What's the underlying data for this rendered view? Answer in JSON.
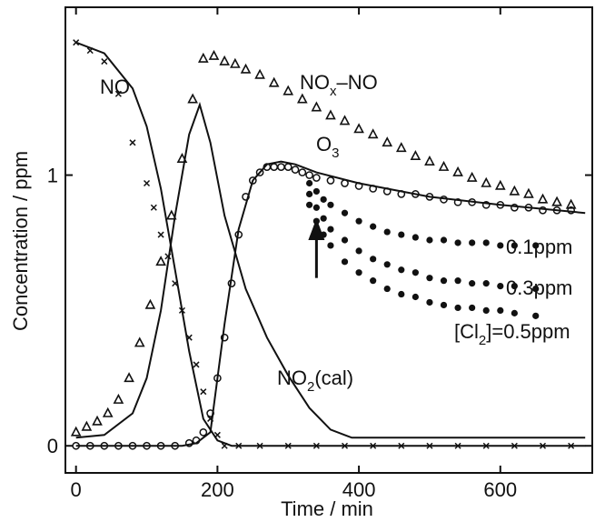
{
  "chart_data": {
    "type": "scatter",
    "xlabel": "Time / min",
    "ylabel": "Concentration / ppm",
    "xlim": [
      -15,
      730
    ],
    "ylim": [
      -0.1,
      1.62
    ],
    "x_ticks": [
      0,
      200,
      400,
      600
    ],
    "y_ticks": [
      0,
      1
    ],
    "legend": "none",
    "series": [
      {
        "name": "NO",
        "marker": "x",
        "points": [
          [
            0,
            1.49
          ],
          [
            20,
            1.46
          ],
          [
            40,
            1.42
          ],
          [
            60,
            1.3
          ],
          [
            80,
            1.12
          ],
          [
            100,
            0.97
          ],
          [
            110,
            0.88
          ],
          [
            120,
            0.78
          ],
          [
            130,
            0.7
          ],
          [
            140,
            0.6
          ],
          [
            150,
            0.5
          ],
          [
            160,
            0.4
          ],
          [
            170,
            0.3
          ],
          [
            180,
            0.2
          ],
          [
            190,
            0.1
          ],
          [
            200,
            0.04
          ],
          [
            210,
            0.0
          ],
          [
            230,
            0.0
          ],
          [
            260,
            0.0
          ],
          [
            300,
            0.0
          ],
          [
            340,
            0.0
          ],
          [
            380,
            0.0
          ],
          [
            420,
            0.0
          ],
          [
            460,
            0.0
          ],
          [
            500,
            0.0
          ],
          [
            540,
            0.0
          ],
          [
            580,
            0.0
          ],
          [
            620,
            0.0
          ],
          [
            660,
            0.0
          ],
          [
            700,
            0.0
          ]
        ]
      },
      {
        "name": "NOx-NO",
        "marker": "triangle",
        "points": [
          [
            0,
            0.05
          ],
          [
            15,
            0.07
          ],
          [
            30,
            0.09
          ],
          [
            45,
            0.12
          ],
          [
            60,
            0.17
          ],
          [
            75,
            0.25
          ],
          [
            90,
            0.38
          ],
          [
            105,
            0.52
          ],
          [
            120,
            0.68
          ],
          [
            135,
            0.85
          ],
          [
            150,
            1.06
          ],
          [
            165,
            1.28
          ],
          [
            180,
            1.43
          ],
          [
            195,
            1.44
          ],
          [
            210,
            1.42
          ],
          [
            225,
            1.41
          ],
          [
            240,
            1.39
          ],
          [
            260,
            1.37
          ],
          [
            280,
            1.34
          ],
          [
            300,
            1.31
          ],
          [
            320,
            1.28
          ],
          [
            340,
            1.25
          ],
          [
            360,
            1.22
          ],
          [
            380,
            1.2
          ],
          [
            400,
            1.17
          ],
          [
            420,
            1.15
          ],
          [
            440,
            1.12
          ],
          [
            460,
            1.1
          ],
          [
            480,
            1.07
          ],
          [
            500,
            1.05
          ],
          [
            520,
            1.03
          ],
          [
            540,
            1.01
          ],
          [
            560,
            0.99
          ],
          [
            580,
            0.97
          ],
          [
            600,
            0.96
          ],
          [
            620,
            0.94
          ],
          [
            640,
            0.93
          ],
          [
            660,
            0.91
          ],
          [
            680,
            0.9
          ],
          [
            700,
            0.89
          ]
        ]
      },
      {
        "name": "O3",
        "marker": "circle-open",
        "points": [
          [
            0,
            0.0
          ],
          [
            20,
            0.0
          ],
          [
            40,
            0.0
          ],
          [
            60,
            0.0
          ],
          [
            80,
            0.0
          ],
          [
            100,
            0.0
          ],
          [
            120,
            0.0
          ],
          [
            140,
            0.0
          ],
          [
            160,
            0.01
          ],
          [
            170,
            0.02
          ],
          [
            180,
            0.05
          ],
          [
            190,
            0.12
          ],
          [
            200,
            0.25
          ],
          [
            210,
            0.4
          ],
          [
            220,
            0.6
          ],
          [
            230,
            0.78
          ],
          [
            240,
            0.92
          ],
          [
            250,
            0.98
          ],
          [
            260,
            1.01
          ],
          [
            270,
            1.03
          ],
          [
            280,
            1.03
          ],
          [
            290,
            1.03
          ],
          [
            300,
            1.03
          ],
          [
            310,
            1.02
          ],
          [
            320,
            1.01
          ],
          [
            330,
            1.0
          ],
          [
            340,
            0.99
          ],
          [
            360,
            0.98
          ],
          [
            380,
            0.97
          ],
          [
            400,
            0.96
          ],
          [
            420,
            0.95
          ],
          [
            440,
            0.94
          ],
          [
            460,
            0.93
          ],
          [
            480,
            0.93
          ],
          [
            500,
            0.92
          ],
          [
            520,
            0.91
          ],
          [
            540,
            0.9
          ],
          [
            560,
            0.9
          ],
          [
            580,
            0.89
          ],
          [
            600,
            0.89
          ],
          [
            620,
            0.88
          ],
          [
            640,
            0.88
          ],
          [
            660,
            0.87
          ],
          [
            680,
            0.87
          ],
          [
            700,
            0.87
          ]
        ]
      },
      {
        "name": "0.1ppm",
        "marker": "dot",
        "points": [
          [
            330,
            0.97
          ],
          [
            340,
            0.94
          ],
          [
            350,
            0.91
          ],
          [
            360,
            0.89
          ],
          [
            380,
            0.86
          ],
          [
            400,
            0.83
          ],
          [
            420,
            0.81
          ],
          [
            440,
            0.79
          ],
          [
            460,
            0.78
          ],
          [
            480,
            0.77
          ],
          [
            500,
            0.76
          ],
          [
            520,
            0.76
          ],
          [
            540,
            0.75
          ],
          [
            560,
            0.75
          ],
          [
            580,
            0.75
          ],
          [
            600,
            0.74
          ],
          [
            620,
            0.74
          ],
          [
            650,
            0.74
          ]
        ]
      },
      {
        "name": "0.3ppm",
        "marker": "dot",
        "points": [
          [
            330,
            0.93
          ],
          [
            340,
            0.88
          ],
          [
            350,
            0.84
          ],
          [
            360,
            0.8
          ],
          [
            380,
            0.76
          ],
          [
            400,
            0.72
          ],
          [
            420,
            0.69
          ],
          [
            440,
            0.67
          ],
          [
            460,
            0.65
          ],
          [
            480,
            0.64
          ],
          [
            500,
            0.62
          ],
          [
            520,
            0.61
          ],
          [
            540,
            0.61
          ],
          [
            560,
            0.6
          ],
          [
            580,
            0.6
          ],
          [
            600,
            0.59
          ],
          [
            620,
            0.59
          ],
          [
            650,
            0.58
          ]
        ]
      },
      {
        "name": "[Cl2]=0.5ppm",
        "marker": "dot",
        "points": [
          [
            330,
            0.89
          ],
          [
            340,
            0.83
          ],
          [
            350,
            0.78
          ],
          [
            360,
            0.74
          ],
          [
            380,
            0.68
          ],
          [
            400,
            0.64
          ],
          [
            420,
            0.61
          ],
          [
            440,
            0.58
          ],
          [
            460,
            0.56
          ],
          [
            480,
            0.55
          ],
          [
            500,
            0.53
          ],
          [
            520,
            0.52
          ],
          [
            540,
            0.51
          ],
          [
            560,
            0.51
          ],
          [
            580,
            0.5
          ],
          [
            600,
            0.5
          ],
          [
            620,
            0.49
          ],
          [
            650,
            0.48
          ]
        ]
      },
      {
        "name": "NO (model)",
        "marker": "line",
        "points": [
          [
            0,
            1.49
          ],
          [
            40,
            1.45
          ],
          [
            80,
            1.32
          ],
          [
            100,
            1.18
          ],
          [
            120,
            0.95
          ],
          [
            140,
            0.65
          ],
          [
            160,
            0.35
          ],
          [
            180,
            0.1
          ],
          [
            200,
            0.02
          ],
          [
            220,
            0.0
          ],
          [
            400,
            0.0
          ],
          [
            720,
            0.0
          ]
        ]
      },
      {
        "name": "NO2(cal)",
        "marker": "line",
        "points": [
          [
            0,
            0.03
          ],
          [
            40,
            0.04
          ],
          [
            80,
            0.12
          ],
          [
            100,
            0.25
          ],
          [
            120,
            0.5
          ],
          [
            140,
            0.85
          ],
          [
            160,
            1.15
          ],
          [
            175,
            1.26
          ],
          [
            190,
            1.12
          ],
          [
            210,
            0.85
          ],
          [
            240,
            0.58
          ],
          [
            270,
            0.4
          ],
          [
            300,
            0.26
          ],
          [
            330,
            0.14
          ],
          [
            360,
            0.06
          ],
          [
            390,
            0.03
          ],
          [
            420,
            0.03
          ],
          [
            720,
            0.03
          ]
        ]
      },
      {
        "name": "O3 (model)",
        "marker": "line",
        "points": [
          [
            0,
            0.0
          ],
          [
            150,
            0.0
          ],
          [
            170,
            0.01
          ],
          [
            190,
            0.05
          ],
          [
            210,
            0.45
          ],
          [
            230,
            0.8
          ],
          [
            250,
            0.98
          ],
          [
            270,
            1.04
          ],
          [
            290,
            1.05
          ],
          [
            310,
            1.04
          ],
          [
            340,
            1.01
          ],
          [
            400,
            0.97
          ],
          [
            500,
            0.92
          ],
          [
            600,
            0.89
          ],
          [
            720,
            0.86
          ]
        ]
      }
    ],
    "annotations": [
      {
        "text_main": "NO",
        "text_sub": "",
        "text_tail": ""
      },
      {
        "text_main": "NO",
        "text_sub": "x",
        "text_tail": "–NO"
      },
      {
        "text_main": "O",
        "text_sub": "3",
        "text_tail": ""
      },
      {
        "text_main": "0.1ppm",
        "text_sub": "",
        "text_tail": ""
      },
      {
        "text_main": "0.3ppm",
        "text_sub": "",
        "text_tail": ""
      },
      {
        "text_main": "[Cl",
        "text_sub": "2",
        "text_tail": "]=0.5ppm"
      },
      {
        "text_main": "NO",
        "text_sub": "2",
        "text_tail": "(cal)"
      }
    ],
    "arrow_at_x": 340
  }
}
